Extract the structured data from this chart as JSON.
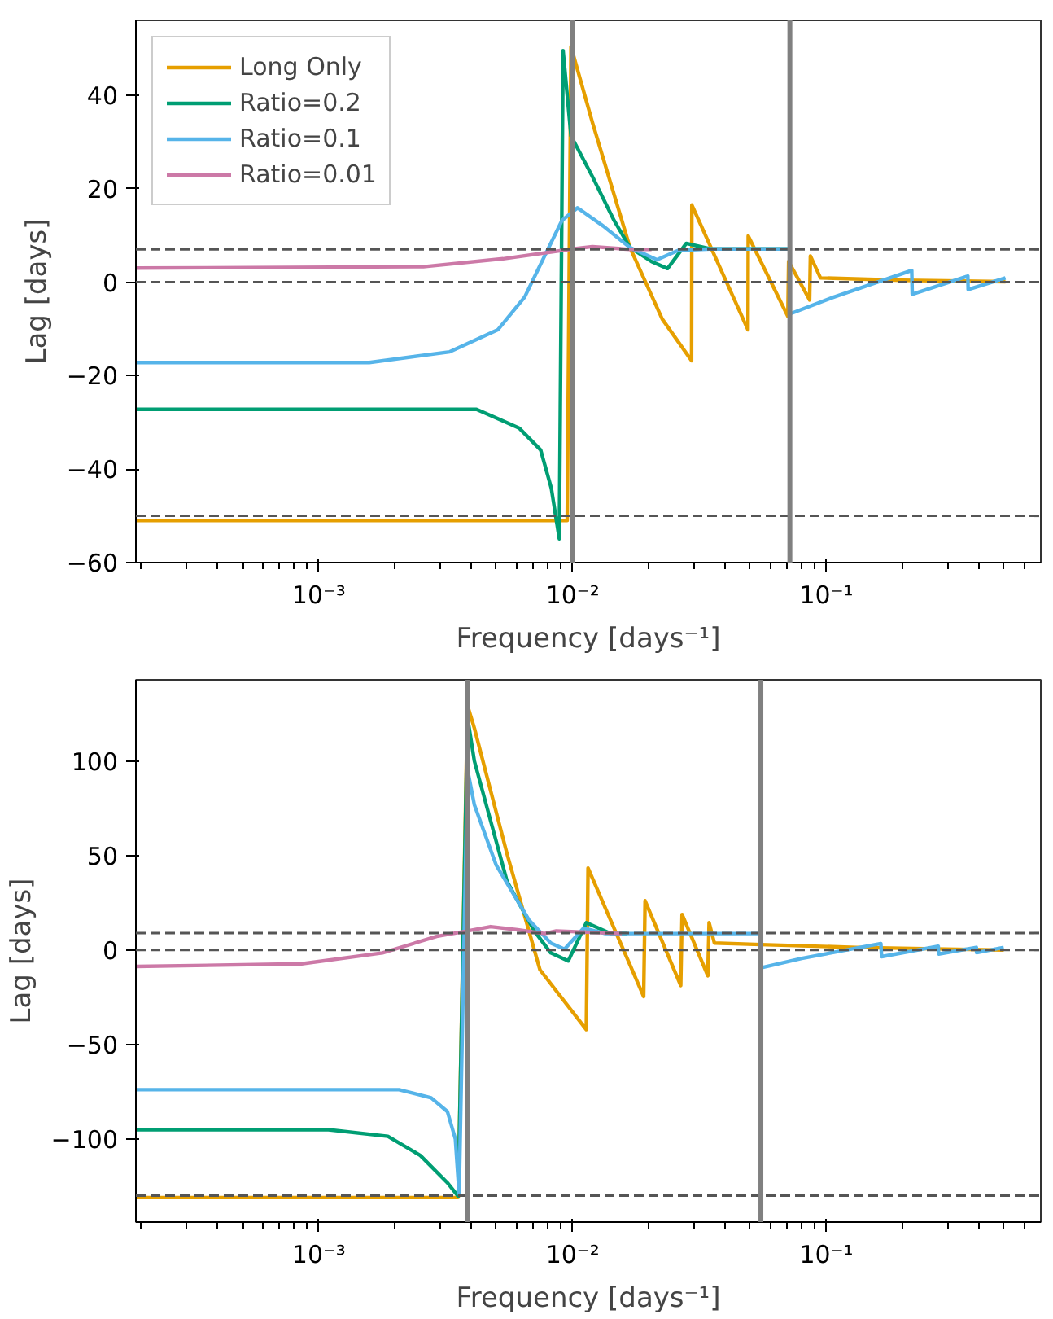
{
  "chart_data": [
    {
      "type": "line",
      "xlabel": "Frequency [days⁻¹]",
      "ylabel": "Lag [days]",
      "log": "x",
      "grid": false,
      "legend": "top left",
      "line_style": "solid",
      "marker": "none",
      "xlim": [
        0.00019,
        0.7
      ],
      "ylim": [
        -60,
        56
      ],
      "xticks": [
        {
          "value": 0.001,
          "label": "10⁻³"
        },
        {
          "value": 0.01,
          "label": "10⁻²"
        },
        {
          "value": 0.1,
          "label": "10⁻¹"
        }
      ],
      "yticks": [
        -60,
        -40,
        -20,
        0,
        20,
        40
      ],
      "ref_lines": [
        {
          "axis": "y",
          "value": 7,
          "color": "#555555",
          "line_style": "dashed"
        },
        {
          "axis": "y",
          "value": 0,
          "color": "#555555",
          "line_style": "dashed"
        },
        {
          "axis": "y",
          "value": -50,
          "color": "#555555",
          "line_style": "dashed"
        },
        {
          "axis": "x",
          "value": 0.01,
          "color": "#808080",
          "line_style": "solid"
        },
        {
          "axis": "x",
          "value": 0.0718,
          "color": "#808080",
          "line_style": "solid"
        }
      ],
      "series": [
        {
          "name": "Long Only",
          "color": "#e69f00",
          "x": [
            0.00019,
            0.00952,
            0.00985,
            0.01196,
            0.01683,
            0.02255,
            0.02943,
            0.0295,
            0.0491,
            0.0492,
            0.0705,
            0.071,
            0.0859,
            0.0865,
            0.0948,
            0.2,
            0.508
          ],
          "values": [
            -51,
            -51,
            50.4,
            34.2,
            7.4,
            -7.9,
            -16.8,
            16.5,
            -10.2,
            9.9,
            -7.3,
            4.4,
            -3.8,
            5.6,
            0.9,
            0.4,
            0.1
          ]
        },
        {
          "name": "Ratio=0.2",
          "color": "#009e73",
          "x": [
            0.00019,
            0.00418,
            0.00615,
            0.00748,
            0.00824,
            0.00886,
            0.00917,
            0.00985,
            0.01196,
            0.01456,
            0.01683,
            0.02046,
            0.02366,
            0.02805,
            0.0349,
            0.0718
          ],
          "values": [
            -27.2,
            -27.2,
            -31.2,
            -35.9,
            -44.1,
            -54.9,
            49.5,
            31.3,
            22.6,
            13.2,
            7.4,
            4.4,
            2.9,
            8.3,
            7.1,
            7.1
          ]
        },
        {
          "name": "Ratio=0.1",
          "color": "#56b4e9",
          "x": [
            0.00019,
            0.00158,
            0.00328,
            0.00507,
            0.00647,
            0.00785,
            0.00908,
            0.01045,
            0.0132,
            0.01683,
            0.0215,
            0.02607,
            0.0349,
            0.0718,
            0.0719,
            0.107,
            0.217,
            0.218,
            0.361,
            0.362,
            0.508
          ],
          "values": [
            -17.2,
            -17.2,
            -14.9,
            -10.2,
            -3.2,
            6.2,
            13.2,
            15.9,
            12.0,
            7.4,
            4.8,
            6.8,
            7.1,
            7.1,
            -6.8,
            -3.2,
            2.5,
            -2.6,
            1.3,
            -1.6,
            0.9
          ]
        },
        {
          "name": "Ratio=0.01",
          "color": "#cc79a7",
          "x": [
            0.00019,
            0.00258,
            0.00532,
            0.01,
            0.01196,
            0.01683,
            0.02046
          ],
          "values": [
            3.0,
            3.3,
            5.0,
            7.1,
            7.6,
            7.0,
            7.0
          ]
        }
      ]
    },
    {
      "type": "line",
      "xlabel": "Frequency [days⁻¹]",
      "ylabel": "Lag [days]",
      "log": "x",
      "grid": false,
      "line_style": "solid",
      "marker": "none",
      "xlim": [
        0.00019,
        0.7
      ],
      "ylim": [
        -144,
        143
      ],
      "xticks": [
        {
          "value": 0.001,
          "label": "10⁻³"
        },
        {
          "value": 0.01,
          "label": "10⁻²"
        },
        {
          "value": 0.1,
          "label": "10⁻¹"
        }
      ],
      "yticks": [
        -100,
        -50,
        0,
        50,
        100
      ],
      "ref_lines": [
        {
          "axis": "y",
          "value": 9,
          "color": "#555555",
          "line_style": "dashed"
        },
        {
          "axis": "y",
          "value": 0,
          "color": "#555555",
          "line_style": "dashed"
        },
        {
          "axis": "y",
          "value": -130,
          "color": "#555555",
          "line_style": "dashed"
        },
        {
          "axis": "x",
          "value": 0.00385,
          "color": "#808080",
          "line_style": "solid"
        },
        {
          "axis": "x",
          "value": 0.0552,
          "color": "#808080",
          "line_style": "solid"
        }
      ],
      "series": [
        {
          "color": "#e69f00",
          "x": [
            0.00019,
            0.00354,
            0.00385,
            0.0041,
            0.00552,
            0.00743,
            0.01132,
            0.0115,
            0.01905,
            0.0193,
            0.02667,
            0.027,
            0.0341,
            0.0345,
            0.0362,
            0.0552,
            0.131,
            0.5
          ],
          "values": [
            -131,
            -131,
            129.5,
            117.4,
            50.7,
            -10.4,
            -42.1,
            43.4,
            -24.6,
            26.1,
            -18.8,
            18.8,
            -13.6,
            14.5,
            3.7,
            2.9,
            1.4,
            0
          ]
        },
        {
          "color": "#009e73",
          "x": [
            0.00019,
            0.00109,
            0.00187,
            0.00251,
            0.00321,
            0.00354,
            0.00385,
            0.0041,
            0.00552,
            0.00706,
            0.0082,
            0.00961,
            0.01132,
            0.01416,
            0.0164
          ],
          "values": [
            -95.1,
            -95.1,
            -98.6,
            -108.7,
            -123.2,
            -130.4,
            123.2,
            100,
            36.2,
            10.1,
            -1.5,
            -5.8,
            14.5,
            8.7,
            8.7
          ]
        },
        {
          "color": "#56b4e9",
          "x": [
            0.00019,
            0.00207,
            0.00277,
            0.00321,
            0.00345,
            0.00357,
            0.00385,
            0.0041,
            0.005,
            0.00673,
            0.0082,
            0.00929,
            0.01104,
            0.01346,
            0.0552,
            0.0553,
            0.08,
            0.164,
            0.165,
            0.276,
            0.277,
            0.39,
            0.391,
            0.5
          ],
          "values": [
            -73.9,
            -73.9,
            -78.2,
            -85.5,
            -100,
            -129,
            95.6,
            76.8,
            44.9,
            15.9,
            3.7,
            0.5,
            11.6,
            8.7,
            8.7,
            -9.4,
            -4.4,
            3.4,
            -3.5,
            2.0,
            -2.1,
            1.4,
            -1.4,
            1.4
          ]
        },
        {
          "color": "#cc79a7",
          "x": [
            0.00019,
            0.000855,
            0.00178,
            0.00291,
            0.00385,
            0.00475,
            0.00607,
            0.00775,
            0.00862,
            0.01563
          ],
          "values": [
            -8.7,
            -7.3,
            -1.5,
            7.2,
            10.1,
            12.4,
            10.7,
            8.7,
            10.1,
            8.7
          ]
        }
      ]
    }
  ]
}
